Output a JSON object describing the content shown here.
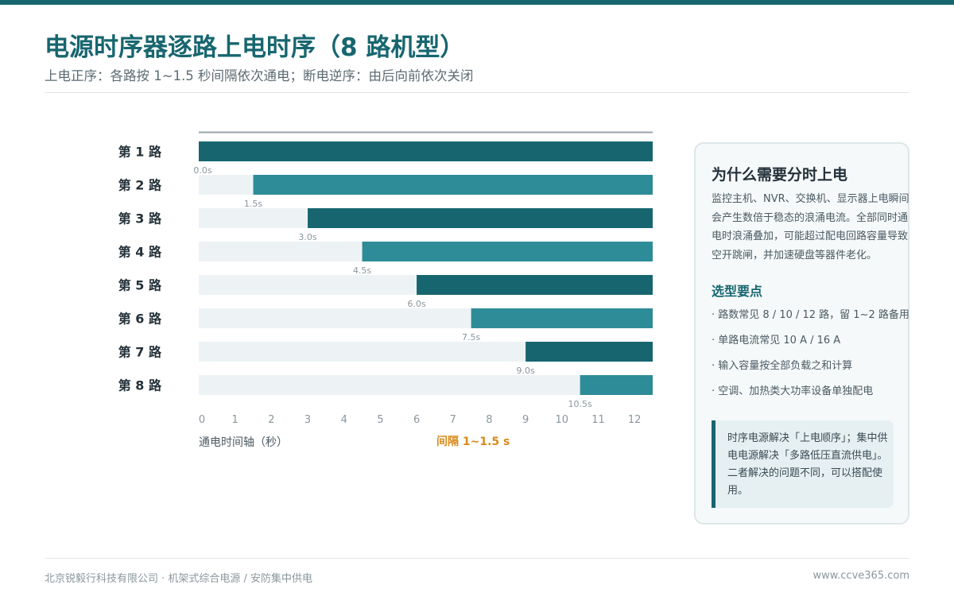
{
  "header": {
    "title": "电源时序器逐路上电时序（8 路机型）",
    "subtitle": "上电正序：各路按 1~1.5 秒间隔依次通电；断电逆序：由后向前依次关闭"
  },
  "chart_data": {
    "type": "bar",
    "orientation": "horizontal",
    "categories": [
      "第 1 路",
      "第 2 路",
      "第 3 路",
      "第 4 路",
      "第 5 路",
      "第 6 路",
      "第 7 路",
      "第 8 路"
    ],
    "start_values": [
      0,
      1.5,
      3,
      4.5,
      6,
      7.5,
      9,
      10.5
    ],
    "value_labels": [
      "0.0s",
      "1.5s",
      "3.0s",
      "4.5s",
      "6.0s",
      "7.5s",
      "9.0s",
      "10.5s"
    ],
    "x_ticks": [
      0,
      1,
      2,
      3,
      4,
      5,
      6,
      7,
      8,
      9,
      10,
      11,
      12
    ],
    "xlim": [
      0,
      12.5
    ],
    "xlabel": "通电时间轴（秒）",
    "annotation": "间隔 1~1.5 s",
    "colors": [
      "#17666f",
      "#2e8c99"
    ],
    "track_color": "#edf3f5",
    "grid": false
  },
  "side_panel": {
    "title": "为什么需要分时上电",
    "body": "监控主机、NVR、交换机、显示器上电瞬间会产生数倍于稳态的浪涌电流。全部同时通电时浪涌叠加，可能超过配电回路容量导致空开跳闸，并加速硬盘等器件老化。",
    "subtitle": "选型要点",
    "tips": [
      "· 路数常见 8 / 10 / 12 路，留 1~2 路备用",
      "· 单路电流常见 10 A / 16 A",
      "· 输入容量按全部负载之和计算",
      "· 空调、加热类大功率设备单独配电"
    ],
    "note": "时序电源解决「上电顺序」；集中供电电源解决「多路低压直流供电」。二者解决的问题不同，可以搭配使用。"
  },
  "footer": {
    "left": "北京锐毅行科技有限公司 · 机架式综合电源 / 安防集中供电",
    "right": "www.ccve365.com"
  }
}
